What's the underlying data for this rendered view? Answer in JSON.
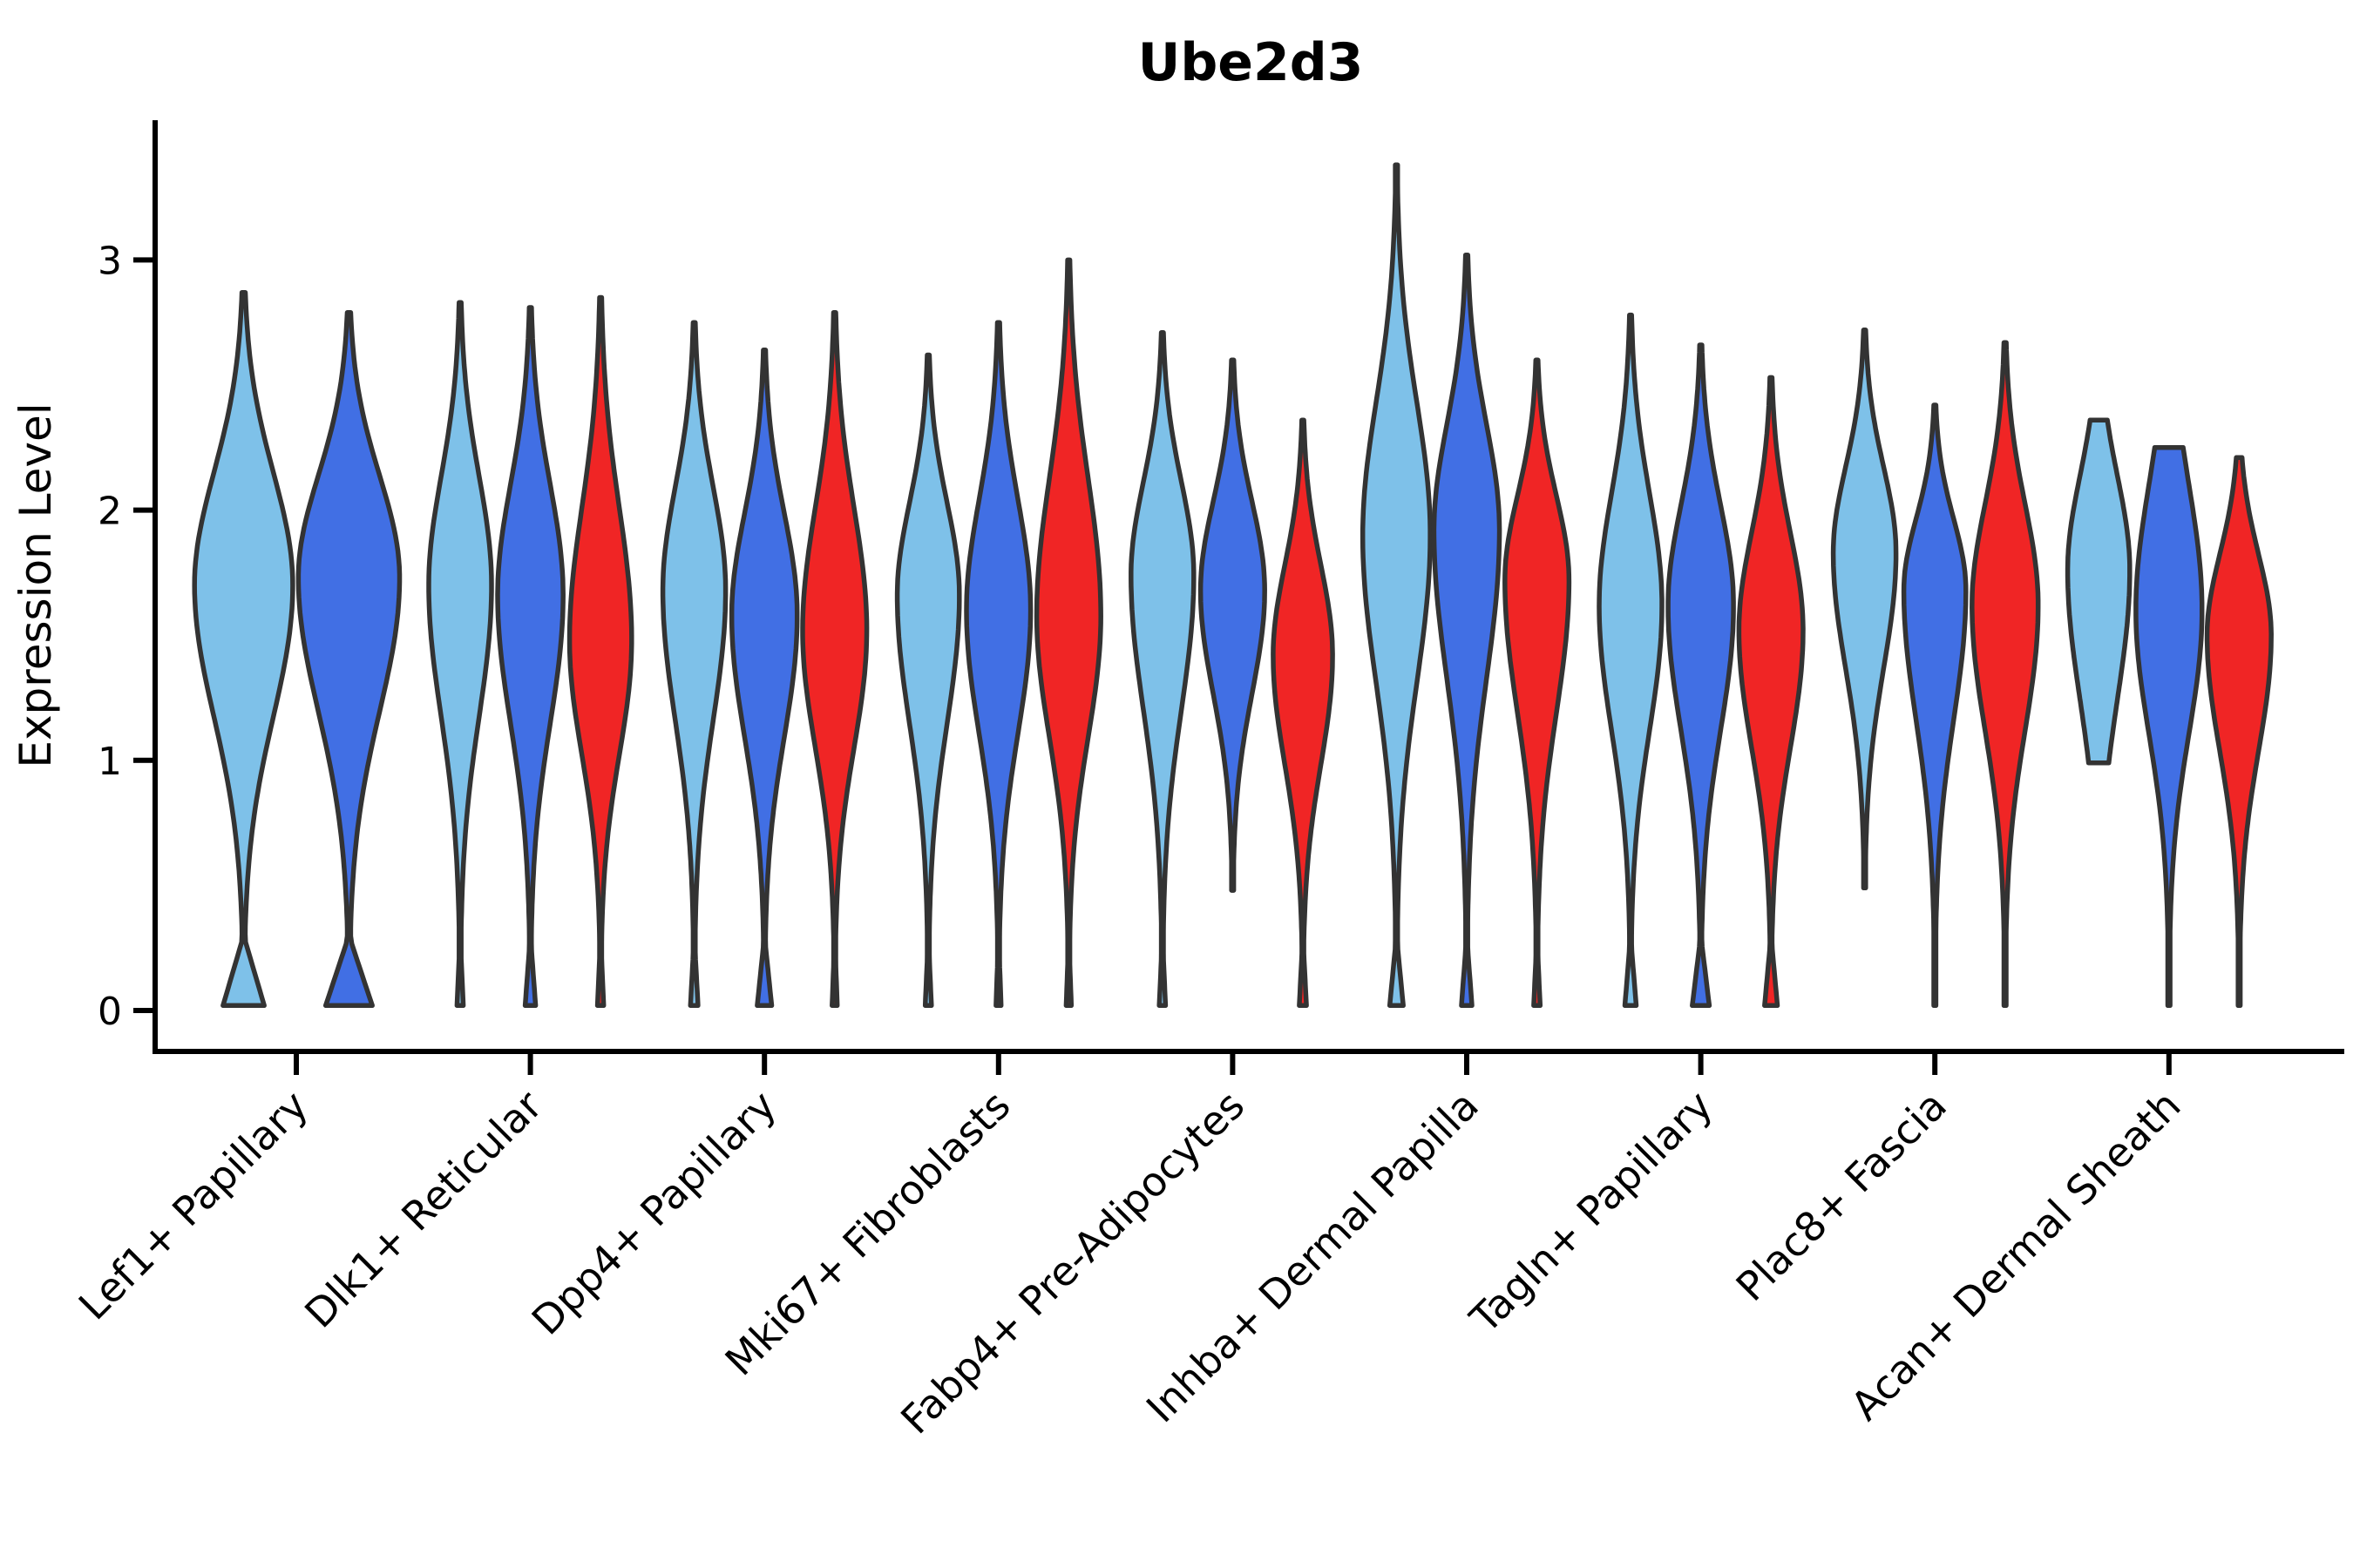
{
  "title": "Ube2d3",
  "y_axis": {
    "label": "Expression Level",
    "ticks": [
      "0",
      "1",
      "2",
      "3"
    ]
  },
  "colors": {
    "light_blue": "#7EC1E9",
    "blue": "#416FE4",
    "red": "#F02525",
    "edge": "#333333",
    "axis": "#000000",
    "background": "#ffffff"
  },
  "chart_data": {
    "type": "violin",
    "title": "Ube2d3",
    "xlabel": "",
    "ylabel": "Expression Level",
    "ylim": [
      -0.16,
      3.55
    ],
    "yticks": [
      0,
      1,
      2,
      3
    ],
    "grid": false,
    "legend_position": "none",
    "series_order": [
      "light_blue",
      "blue",
      "red"
    ],
    "categories": [
      "Lef1+ Papillary",
      "Dlk1+ Reticular",
      "Dpp4+ Papillary",
      "Mki67+ Fibroblasts",
      "Fabp4+ Pre-Adipocytes",
      "Inhba+ Dermal Papilla",
      "Tagln+ Papillary",
      "Plac8+ Fascia",
      "Acan+ Dermal Sheath"
    ],
    "groups": [
      {
        "category": "Lef1+ Papillary",
        "violins": [
          {
            "series": "light_blue",
            "max": 2.87,
            "peak": 1.7,
            "min": 0.02,
            "zero_blob": 0.42,
            "width": 0.97
          },
          {
            "series": "blue",
            "max": 2.79,
            "peak": 1.73,
            "min": 0.02,
            "zero_blob": 0.46,
            "width": 1.0
          }
        ]
      },
      {
        "category": "Dlk1+ Reticular",
        "violins": [
          {
            "series": "light_blue",
            "max": 2.83,
            "peak": 1.7,
            "min": 0.02,
            "zero_blob": 0.1,
            "width": 0.93
          },
          {
            "series": "blue",
            "max": 2.81,
            "peak": 1.66,
            "min": 0.02,
            "zero_blob": 0.16,
            "width": 0.97
          },
          {
            "series": "red",
            "max": 2.85,
            "peak": 1.48,
            "min": 0.02,
            "zero_blob": 0.1,
            "width": 0.92
          }
        ]
      },
      {
        "category": "Dpp4+ Papillary",
        "violins": [
          {
            "series": "light_blue",
            "max": 2.75,
            "peak": 1.68,
            "min": 0.02,
            "zero_blob": 0.12,
            "width": 0.93
          },
          {
            "series": "blue",
            "max": 2.64,
            "peak": 1.58,
            "min": 0.02,
            "zero_blob": 0.22,
            "width": 0.97
          },
          {
            "series": "red",
            "max": 2.79,
            "peak": 1.52,
            "min": 0.02,
            "zero_blob": 0.08,
            "width": 0.95
          }
        ]
      },
      {
        "category": "Mki67+ Fibroblasts",
        "violins": [
          {
            "series": "light_blue",
            "max": 2.62,
            "peak": 1.66,
            "min": 0.02,
            "zero_blob": 0.1,
            "width": 0.92
          },
          {
            "series": "blue",
            "max": 2.75,
            "peak": 1.6,
            "min": 0.02,
            "zero_blob": 0.08,
            "width": 0.95
          },
          {
            "series": "red",
            "max": 3.0,
            "peak": 1.58,
            "min": 0.02,
            "zero_blob": 0.08,
            "width": 0.95
          }
        ]
      },
      {
        "category": "Fabp4+ Pre-Adipocytes",
        "violins": [
          {
            "series": "light_blue",
            "max": 2.71,
            "peak": 1.74,
            "min": 0.02,
            "zero_blob": 0.1,
            "width": 0.93
          },
          {
            "series": "blue",
            "max": 2.6,
            "peak": 1.68,
            "min": 0.48,
            "zero_blob": 0,
            "width": 0.95,
            "taper_bottom": 2.9
          },
          {
            "series": "red",
            "max": 2.36,
            "peak": 1.42,
            "min": 0.02,
            "zero_blob": 0.12,
            "width": 0.88
          }
        ]
      },
      {
        "category": "Inhba+ Dermal Papilla",
        "violins": [
          {
            "series": "light_blue",
            "max": 3.38,
            "peak": 1.9,
            "min": 0.02,
            "zero_blob": 0.2,
            "width": 1.0,
            "taper_top": 2.8
          },
          {
            "series": "blue",
            "max": 3.02,
            "peak": 1.92,
            "min": 0.02,
            "zero_blob": 0.16,
            "width": 0.97
          },
          {
            "series": "red",
            "max": 2.6,
            "peak": 1.72,
            "min": 0.02,
            "zero_blob": 0.1,
            "width": 0.95
          }
        ]
      },
      {
        "category": "Tagln+ Papillary",
        "violins": [
          {
            "series": "light_blue",
            "max": 2.78,
            "peak": 1.62,
            "min": 0.02,
            "zero_blob": 0.18,
            "width": 0.93
          },
          {
            "series": "blue",
            "max": 2.66,
            "peak": 1.62,
            "min": 0.02,
            "zero_blob": 0.26,
            "width": 0.97
          },
          {
            "series": "red",
            "max": 2.53,
            "peak": 1.52,
            "min": 0.02,
            "zero_blob": 0.2,
            "width": 0.95
          }
        ]
      },
      {
        "category": "Plac8+ Fascia",
        "violins": [
          {
            "series": "light_blue",
            "max": 2.72,
            "peak": 1.83,
            "min": 0.49,
            "zero_blob": 0,
            "width": 0.93,
            "taper_bottom": 2.9
          },
          {
            "series": "blue",
            "max": 2.42,
            "peak": 1.68,
            "min": 0.02,
            "zero_blob": 0,
            "width": 0.92
          },
          {
            "series": "red",
            "max": 2.67,
            "peak": 1.62,
            "min": 0.02,
            "zero_blob": 0,
            "width": 0.98
          }
        ]
      },
      {
        "category": "Acan+ Dermal Sheath",
        "violins": [
          {
            "series": "light_blue",
            "max": 2.36,
            "peak": 1.76,
            "min": 0.99,
            "zero_blob": 0,
            "width": 0.92,
            "taper_top": 1.6,
            "taper_bottom": 1.5
          },
          {
            "series": "blue",
            "max": 2.25,
            "peak": 1.6,
            "min": 0.02,
            "zero_blob": 0,
            "width": 0.98,
            "taper_top": 1.3
          },
          {
            "series": "red",
            "max": 2.21,
            "peak": 1.5,
            "min": 0.02,
            "zero_blob": 0,
            "width": 0.95,
            "taper_top": 2.2
          }
        ]
      }
    ]
  }
}
